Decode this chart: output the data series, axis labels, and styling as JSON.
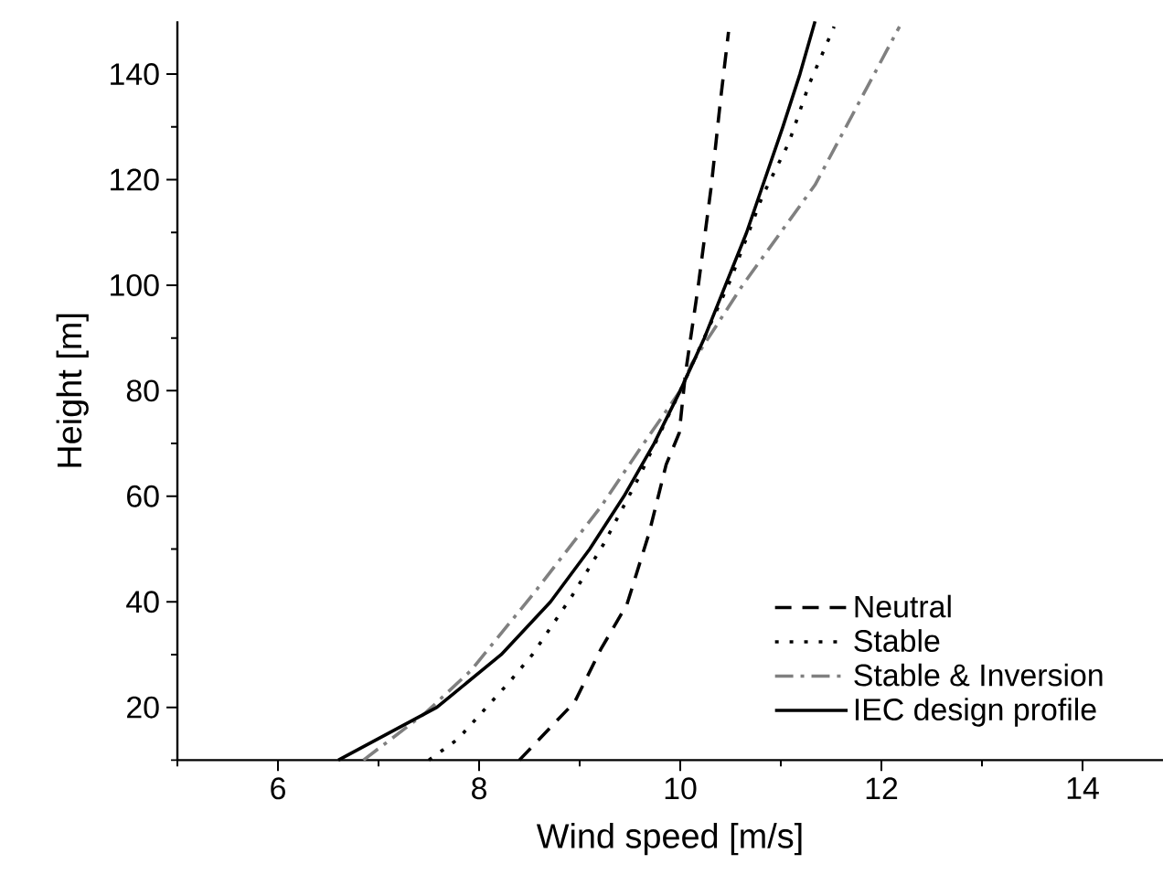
{
  "chart_data": {
    "type": "line",
    "xlabel": "Wind speed [m/s]",
    "ylabel": "Height [m]",
    "xlim": [
      5,
      14.8
    ],
    "ylim": [
      10,
      150
    ],
    "xticks": [
      {
        "value": 5,
        "label": null
      },
      6,
      {
        "value": 7,
        "label": null
      },
      8,
      {
        "value": 9,
        "label": null
      },
      10,
      {
        "value": 11,
        "label": null
      },
      12,
      {
        "value": 13,
        "label": null
      },
      14
    ],
    "yticks": [
      {
        "value": 10,
        "label": null
      },
      20,
      {
        "value": 30,
        "label": null
      },
      40,
      {
        "value": 50,
        "label": null
      },
      60,
      {
        "value": 70,
        "label": null
      },
      80,
      {
        "value": 90,
        "label": null
      },
      100,
      {
        "value": 110,
        "label": null
      },
      120,
      {
        "value": 130,
        "label": null
      },
      140
    ],
    "grid": false,
    "legend": "bottom right",
    "marker": "none",
    "series": [
      {
        "name": "Neutral",
        "color": "#000000",
        "line_style": "dashed",
        "x": [
          8.4,
          8.95,
          9.21,
          9.47,
          9.69,
          9.86,
          9.99,
          10.05,
          10.18,
          10.31,
          10.4,
          10.48
        ],
        "values": [
          10,
          21,
          31,
          39.5,
          53,
          66,
          72,
          83,
          100,
          119,
          135,
          148
        ]
      },
      {
        "name": "Stable",
        "color": "#000000",
        "line_style": "dotted",
        "x": [
          7.5,
          7.79,
          8.05,
          8.31,
          8.53,
          8.92,
          9.24,
          9.6,
          10.0,
          10.5,
          10.82,
          11.08,
          11.28,
          11.53
        ],
        "values": [
          10,
          14,
          19.5,
          25,
          30,
          41,
          51,
          64,
          80,
          101,
          117,
          127,
          138,
          149
        ]
      },
      {
        "name": "Stable & Inversion",
        "color": "#808080",
        "line_style": "dashdot",
        "x": [
          6.85,
          7.47,
          7.92,
          8.56,
          9.21,
          9.6,
          10.0,
          10.11,
          10.62,
          11.34,
          12.18
        ],
        "values": [
          10,
          19,
          27,
          42,
          58,
          69,
          80,
          85,
          100,
          119,
          149
        ]
      },
      {
        "name": "IEC design profile",
        "color": "#000000",
        "line_style": "solid",
        "x": [
          6.6,
          7.58,
          8.22,
          8.71,
          9.1,
          9.44,
          9.74,
          10.0,
          10.24,
          10.45,
          10.66,
          10.84,
          11.02,
          11.19,
          11.34
        ],
        "values": [
          10,
          20,
          30,
          40,
          50,
          60,
          70,
          80,
          90,
          100,
          110,
          120,
          130,
          140,
          150
        ]
      }
    ]
  }
}
